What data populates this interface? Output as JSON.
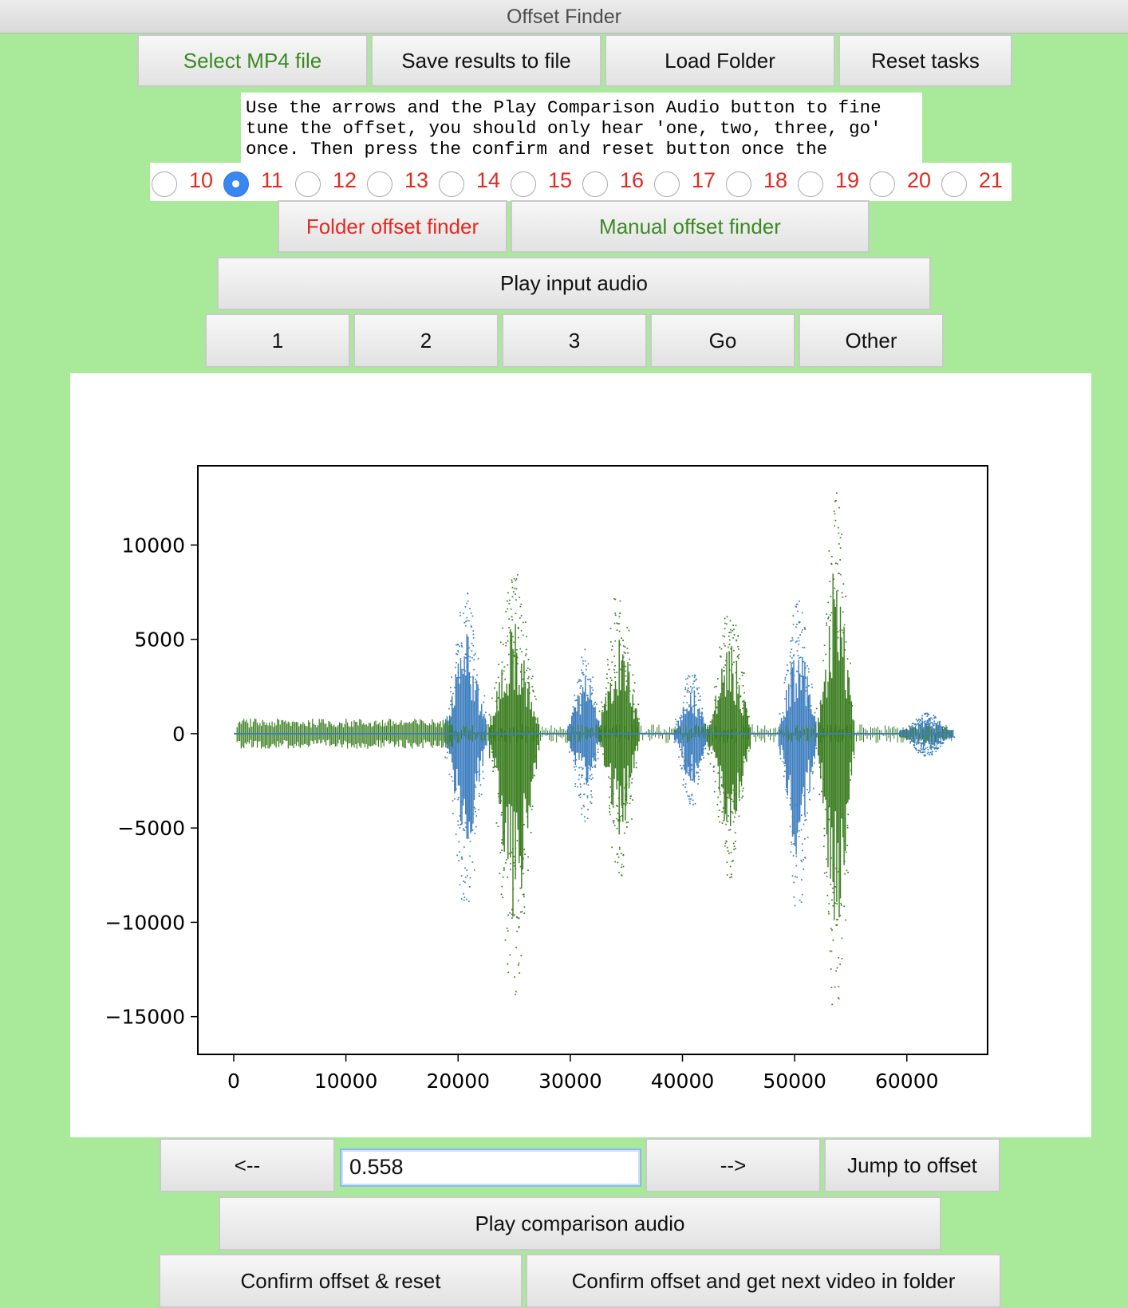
{
  "window": {
    "title": "Offset Finder"
  },
  "top_buttons": {
    "select_mp4": "Select MP4 file",
    "save_results": "Save results to file",
    "load_folder": "Load Folder",
    "reset_tasks": "Reset tasks"
  },
  "instructions": "Use the arrows and the Play Comparison Audio button to fine tune the offset, you should only hear 'one, two, three, go' once. Then press the confirm and reset button once the",
  "radios": {
    "options": [
      "10",
      "11",
      "12",
      "13",
      "14",
      "15",
      "16",
      "17",
      "18",
      "19",
      "20",
      "21"
    ],
    "selected": "11"
  },
  "mode_buttons": {
    "folder_offset_finder": "Folder offset finder",
    "manual_offset_finder": "Manual offset finder"
  },
  "play_input_audio": "Play input audio",
  "word_buttons": [
    "1",
    "2",
    "3",
    "Go",
    "Other"
  ],
  "colors": {
    "background": "#a8ea9a",
    "series_blue": "#3d7ebf",
    "series_green": "#3a7d1f",
    "label_green": "#3b8a23",
    "label_red": "#e22a20",
    "radio_selected": "#3a86f0"
  },
  "chart_data": {
    "type": "scatter",
    "title": "",
    "xlabel": "",
    "ylabel": "",
    "xlim": [
      -3200,
      67200
    ],
    "ylim": [
      -17000,
      14200
    ],
    "xticks": [
      0,
      10000,
      20000,
      30000,
      40000,
      50000,
      60000
    ],
    "xtick_labels": [
      "0",
      "10000",
      "20000",
      "30000",
      "40000",
      "50000",
      "60000"
    ],
    "yticks": [
      10000,
      5000,
      0,
      -5000,
      -10000,
      -15000
    ],
    "ytick_labels": [
      "10000",
      "5000",
      "0",
      "−5000",
      "−10000",
      "−15000"
    ],
    "grid": false,
    "legend": "none",
    "series": [
      {
        "color": "#3d7ebf",
        "bursts": [
          {
            "center": 20700,
            "width": 1900,
            "max": 7600,
            "min": -9200
          },
          {
            "center": 31300,
            "width": 1500,
            "max": 4600,
            "min": -4700
          },
          {
            "center": 40800,
            "width": 1500,
            "max": 3500,
            "min": -4000
          },
          {
            "center": 50300,
            "width": 1700,
            "max": 7100,
            "min": -9500
          },
          {
            "center": 61800,
            "width": 2400,
            "max": 1100,
            "min": -1200
          }
        ]
      },
      {
        "color": "#3a7d1f",
        "bursts": [
          {
            "center": 25000,
            "width": 2200,
            "max": 8600,
            "min": -14300
          },
          {
            "center": 34400,
            "width": 1800,
            "max": 7800,
            "min": -7900
          },
          {
            "center": 44200,
            "width": 1900,
            "max": 7000,
            "min": -7800
          },
          {
            "center": 53700,
            "width": 1600,
            "max": 12900,
            "min": -15800
          }
        ],
        "noise": {
          "x_start": 300,
          "x_end": 19500,
          "level": 800
        }
      }
    ]
  },
  "nav": {
    "back": "<--",
    "forward": "-->",
    "offset_value": "0.558",
    "jump": "Jump to offset"
  },
  "play_comparison_audio": "Play comparison audio",
  "bottom_buttons": {
    "confirm_reset": "Confirm offset & reset",
    "confirm_next": "Confirm offset and get next video in folder"
  }
}
